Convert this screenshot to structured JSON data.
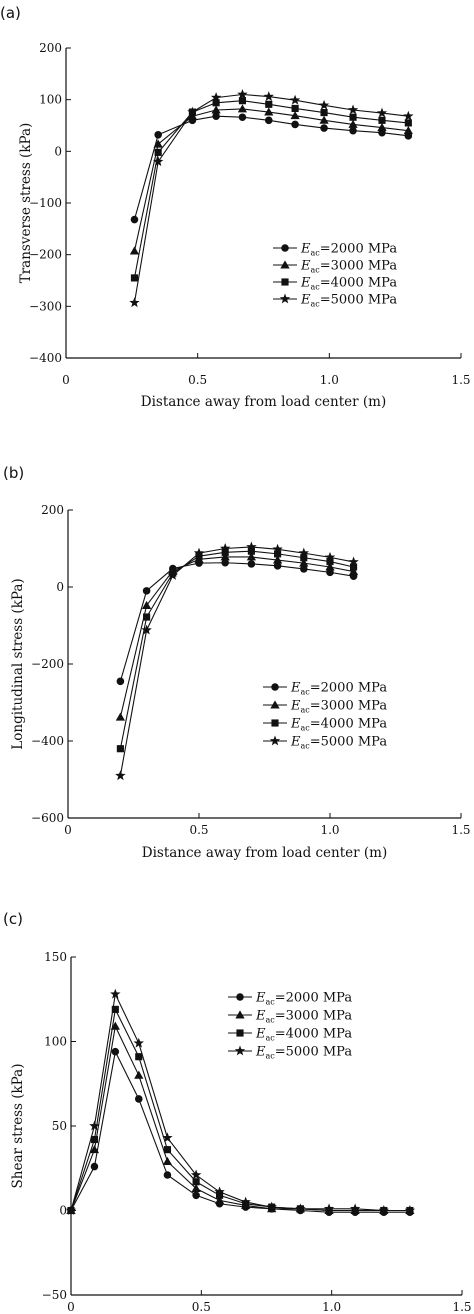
{
  "chart_data": [
    {
      "type": "line",
      "panel_label": "(a)",
      "xlabel": "Distance away from load center (m)",
      "ylabel": "Transverse stress (kPa)",
      "xlim": [
        0,
        1.5
      ],
      "ylim": [
        -400,
        200
      ],
      "xticks": [
        "0",
        "0.5",
        "1.0",
        "1.5"
      ],
      "yticks": [
        "200",
        "100",
        "0",
        "−100",
        "−200",
        "−300",
        "−400"
      ],
      "legend_position": "center-right",
      "x": [
        0.26,
        0.35,
        0.48,
        0.57,
        0.67,
        0.77,
        0.87,
        0.98,
        1.09,
        1.2,
        1.3
      ],
      "series": [
        {
          "label_main": "E",
          "label_sub": "ac",
          "label_rest": "=2000 MPa",
          "marker": "circle",
          "values": [
            -132,
            32,
            60,
            68,
            66,
            60,
            52,
            45,
            40,
            36,
            30
          ]
        },
        {
          "label_main": "E",
          "label_sub": "ac",
          "label_rest": "=3000 MPa",
          "marker": "triangle",
          "values": [
            -193,
            14,
            68,
            80,
            82,
            76,
            69,
            60,
            52,
            46,
            40
          ]
        },
        {
          "label_main": "E",
          "label_sub": "ac",
          "label_rest": "=4000 MPa",
          "marker": "square",
          "values": [
            -245,
            -2,
            76,
            94,
            98,
            91,
            83,
            75,
            66,
            60,
            55
          ]
        },
        {
          "label_main": "E",
          "label_sub": "ac",
          "label_rest": "=5000 MPa",
          "marker": "star",
          "values": [
            -293,
            -20,
            76,
            104,
            110,
            106,
            99,
            89,
            80,
            74,
            68
          ]
        }
      ]
    },
    {
      "type": "line",
      "panel_label": "(b)",
      "xlabel": "Distance away from load center (m)",
      "ylabel": "Longitudinal stress (kPa)",
      "xlim": [
        0,
        1.5
      ],
      "ylim": [
        -600,
        200
      ],
      "xticks": [
        "0",
        "0.5",
        "1.0",
        "1.5"
      ],
      "yticks": [
        "200",
        "0",
        "−200",
        "−400",
        "−600"
      ],
      "legend_position": "center-right",
      "x": [
        0.2,
        0.3,
        0.4,
        0.5,
        0.6,
        0.7,
        0.8,
        0.9,
        1.0,
        1.09
      ],
      "series": [
        {
          "label_main": "E",
          "label_sub": "ac",
          "label_rest": "=2000 MPa",
          "marker": "circle",
          "values": [
            -245,
            -10,
            48,
            62,
            63,
            60,
            55,
            47,
            38,
            28
          ]
        },
        {
          "label_main": "E",
          "label_sub": "ac",
          "label_rest": "=3000 MPa",
          "marker": "triangle",
          "values": [
            -338,
            -48,
            42,
            72,
            78,
            78,
            70,
            62,
            52,
            40
          ]
        },
        {
          "label_main": "E",
          "label_sub": "ac",
          "label_rest": "=4000 MPa",
          "marker": "square",
          "values": [
            -420,
            -78,
            36,
            80,
            90,
            93,
            86,
            76,
            66,
            52
          ]
        },
        {
          "label_main": "E",
          "label_sub": "ac",
          "label_rest": "=5000 MPa",
          "marker": "star",
          "values": [
            -490,
            -112,
            30,
            88,
            100,
            104,
            98,
            88,
            77,
            65
          ]
        }
      ]
    },
    {
      "type": "line",
      "panel_label": "(c)",
      "xlabel": "Distance away from load center (m)",
      "ylabel": "Shear stress (kPa)",
      "xlim": [
        0,
        1.5
      ],
      "ylim": [
        -50,
        150
      ],
      "xticks": [
        "0",
        "0.5",
        "1.0",
        "1.5"
      ],
      "yticks": [
        "150",
        "100",
        "50",
        "0",
        "−50"
      ],
      "legend_position": "top-right",
      "x": [
        0.0,
        0.09,
        0.17,
        0.26,
        0.37,
        0.48,
        0.57,
        0.67,
        0.77,
        0.88,
        0.99,
        1.09,
        1.2,
        1.3
      ],
      "series": [
        {
          "label_main": "E",
          "label_sub": "ac",
          "label_rest": "=2000 MPa",
          "marker": "circle",
          "values": [
            0,
            26,
            94,
            66,
            21,
            9,
            4,
            2,
            1,
            0,
            -1,
            -1,
            -1,
            -1
          ]
        },
        {
          "label_main": "E",
          "label_sub": "ac",
          "label_rest": "=3000 MPa",
          "marker": "triangle",
          "values": [
            0,
            36,
            109,
            80,
            29,
            13,
            6,
            3,
            1,
            1,
            0,
            0,
            0,
            0
          ]
        },
        {
          "label_main": "E",
          "label_sub": "ac",
          "label_rest": "=4000 MPa",
          "marker": "square",
          "values": [
            0,
            42,
            119,
            91,
            36,
            17,
            9,
            4,
            2,
            1,
            0,
            0,
            0,
            0
          ]
        },
        {
          "label_main": "E",
          "label_sub": "ac",
          "label_rest": "=5000 MPa",
          "marker": "star",
          "values": [
            0,
            50,
            128,
            99,
            43,
            21,
            11,
            5,
            2,
            1,
            1,
            1,
            0,
            0
          ]
        }
      ]
    }
  ]
}
